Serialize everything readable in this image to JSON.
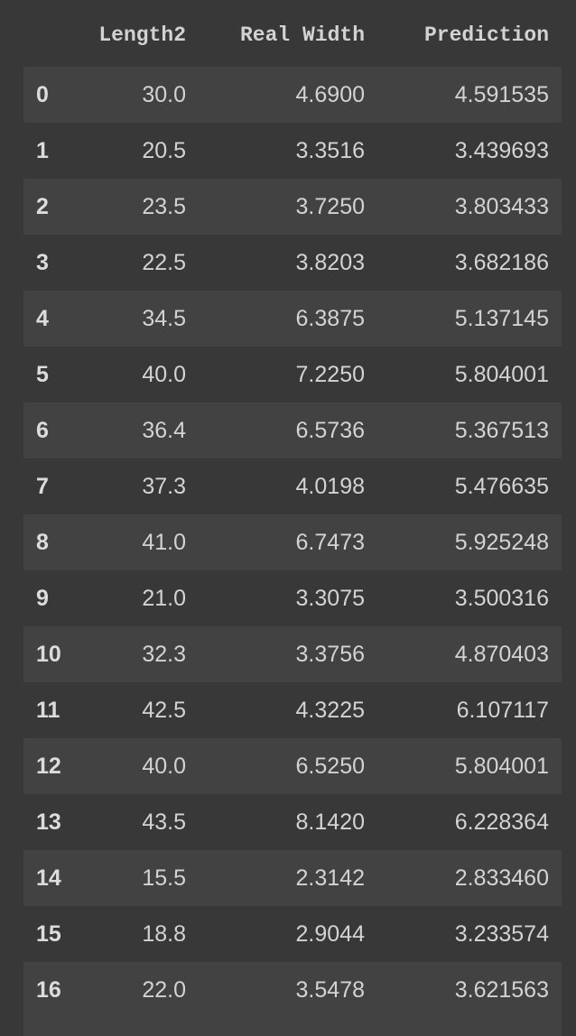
{
  "dataframe": {
    "columns": [
      "",
      "Length2",
      "Real Width",
      "Prediction"
    ],
    "rows": [
      {
        "index": "0",
        "length2": "30.0",
        "real_width": "4.6900",
        "prediction": "4.591535"
      },
      {
        "index": "1",
        "length2": "20.5",
        "real_width": "3.3516",
        "prediction": "3.439693"
      },
      {
        "index": "2",
        "length2": "23.5",
        "real_width": "3.7250",
        "prediction": "3.803433"
      },
      {
        "index": "3",
        "length2": "22.5",
        "real_width": "3.8203",
        "prediction": "3.682186"
      },
      {
        "index": "4",
        "length2": "34.5",
        "real_width": "6.3875",
        "prediction": "5.137145"
      },
      {
        "index": "5",
        "length2": "40.0",
        "real_width": "7.2250",
        "prediction": "5.804001"
      },
      {
        "index": "6",
        "length2": "36.4",
        "real_width": "6.5736",
        "prediction": "5.367513"
      },
      {
        "index": "7",
        "length2": "37.3",
        "real_width": "4.0198",
        "prediction": "5.476635"
      },
      {
        "index": "8",
        "length2": "41.0",
        "real_width": "6.7473",
        "prediction": "5.925248"
      },
      {
        "index": "9",
        "length2": "21.0",
        "real_width": "3.3075",
        "prediction": "3.500316"
      },
      {
        "index": "10",
        "length2": "32.3",
        "real_width": "3.3756",
        "prediction": "4.870403"
      },
      {
        "index": "11",
        "length2": "42.5",
        "real_width": "4.3225",
        "prediction": "6.107117"
      },
      {
        "index": "12",
        "length2": "40.0",
        "real_width": "6.5250",
        "prediction": "5.804001"
      },
      {
        "index": "13",
        "length2": "43.5",
        "real_width": "8.1420",
        "prediction": "6.228364"
      },
      {
        "index": "14",
        "length2": "15.5",
        "real_width": "2.3142",
        "prediction": "2.833460"
      },
      {
        "index": "15",
        "length2": "18.8",
        "real_width": "2.9044",
        "prediction": "3.233574"
      },
      {
        "index": "16",
        "length2": "22.0",
        "real_width": "3.5478",
        "prediction": "3.621563"
      }
    ]
  },
  "colors": {
    "background": "#383838",
    "striped_row": "#424242",
    "text": "#d3d3d3"
  }
}
